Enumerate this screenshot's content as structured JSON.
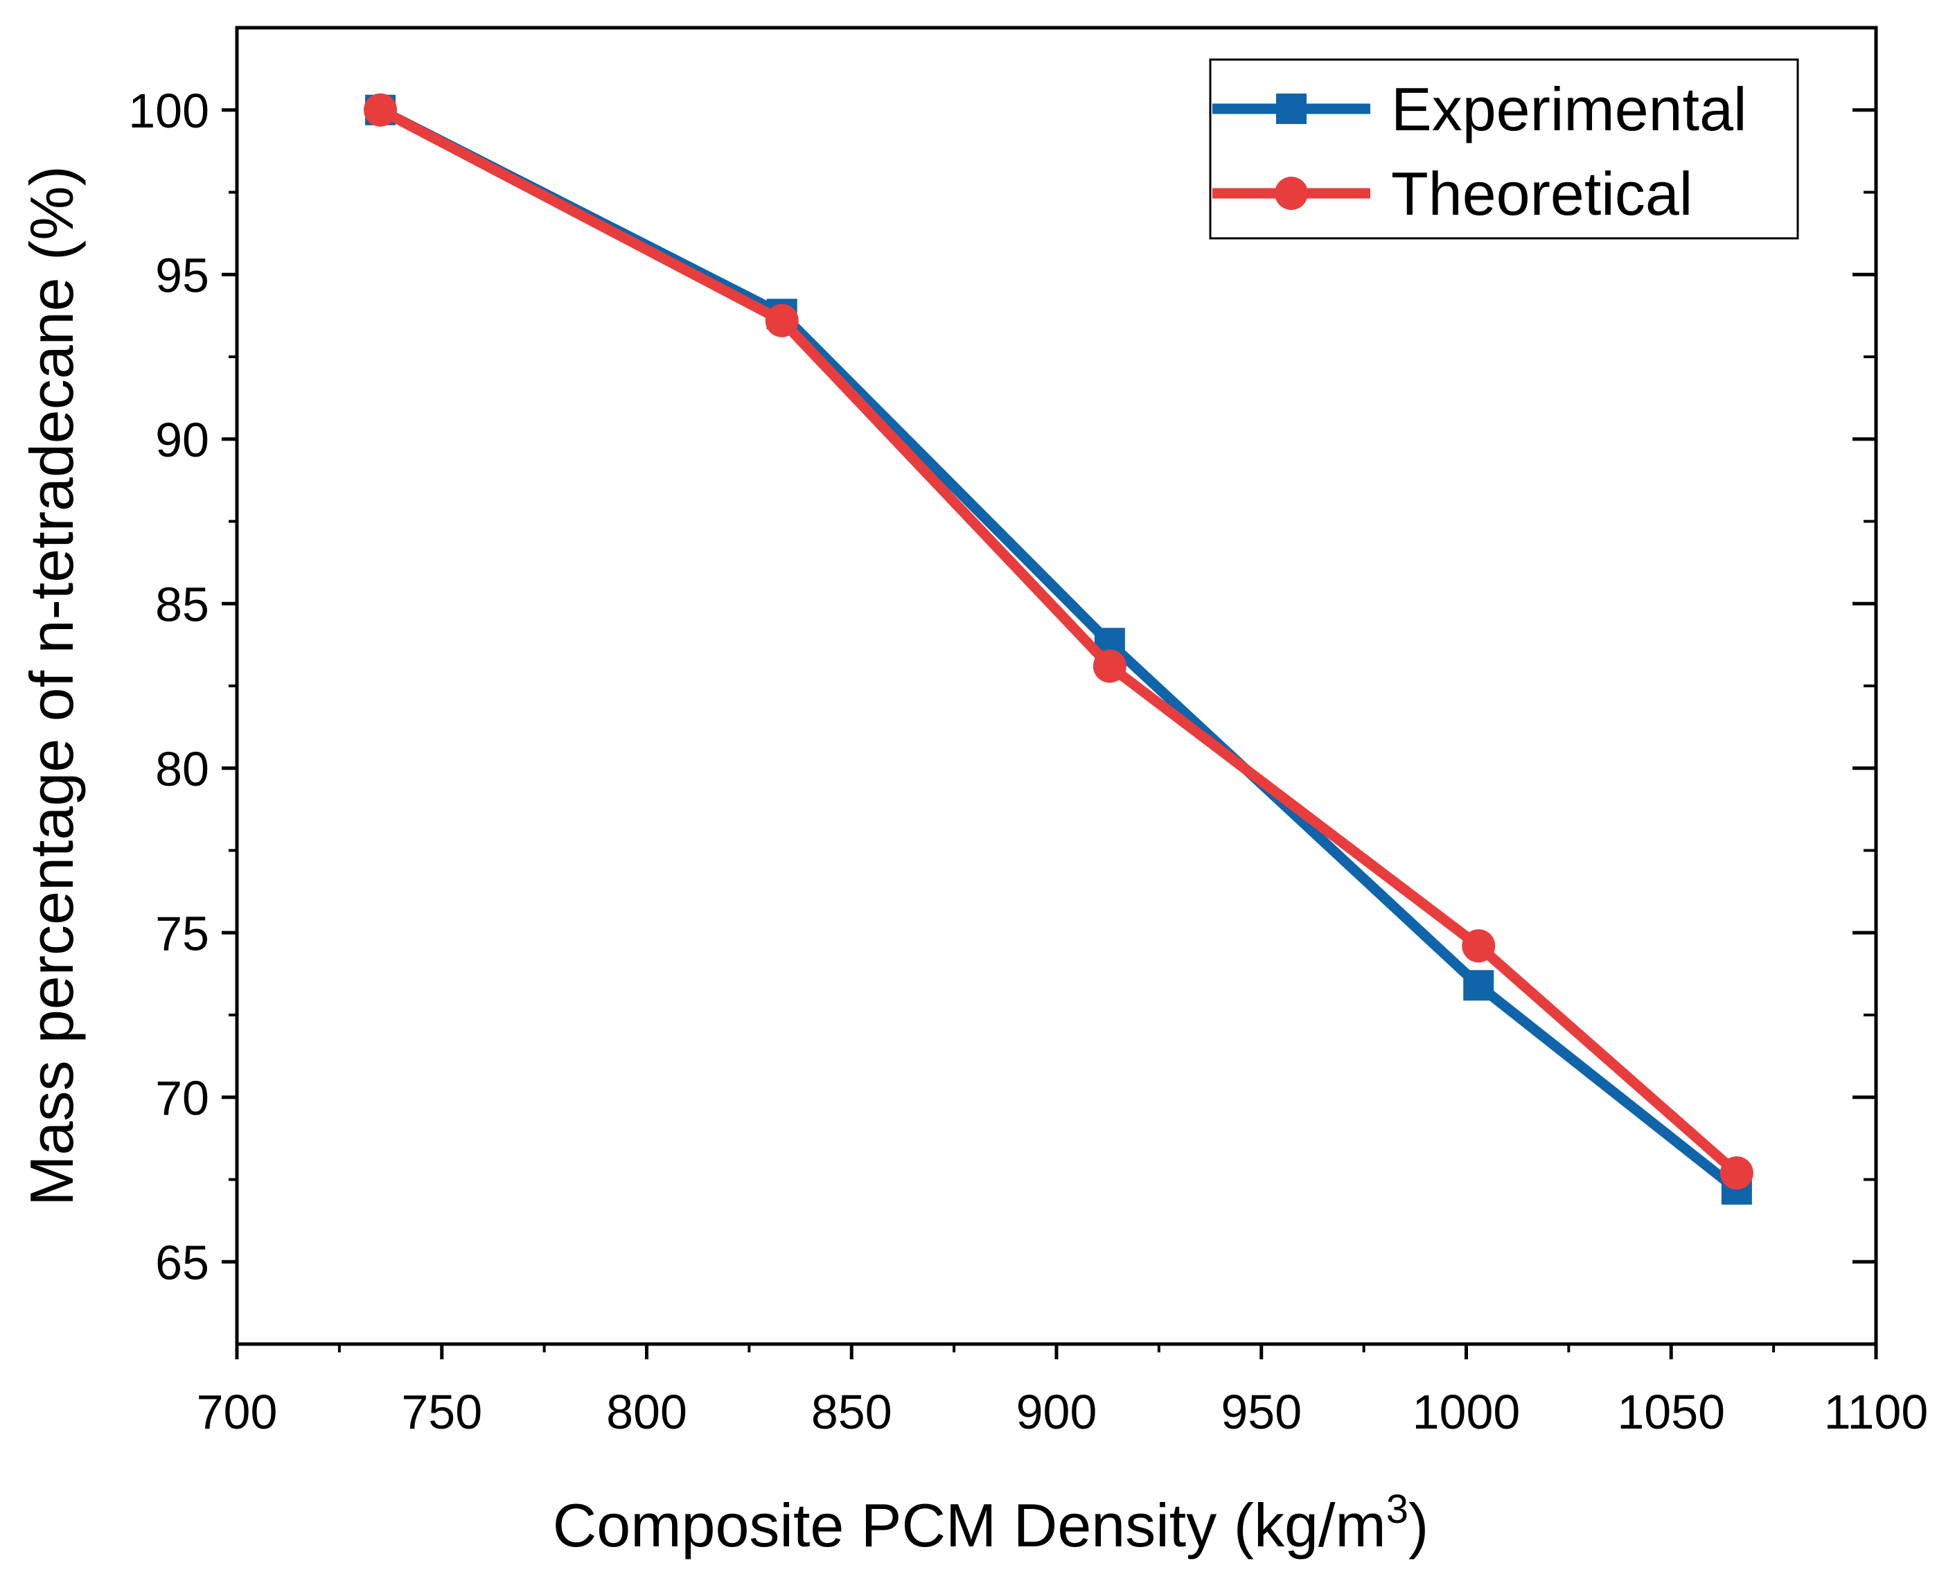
{
  "chart_data": {
    "type": "line",
    "title": "",
    "xlabel": "Composite PCM Density (kg/m",
    "xlabel_superscript": "3",
    "xlabel_suffix": ")",
    "ylabel": "Mass percentage of n-tetradecane (%)",
    "xlim": [
      700,
      1100
    ],
    "ylim": [
      62.5,
      102.5
    ],
    "xticks": [
      700,
      750,
      800,
      850,
      900,
      950,
      1000,
      1050,
      1100
    ],
    "yticks": [
      65,
      70,
      75,
      80,
      85,
      90,
      95,
      100
    ],
    "x_minor_step": 25,
    "y_minor_step": 2.5,
    "grid": false,
    "legend_position": "top-right",
    "series": [
      {
        "name": "Experimental",
        "marker": "square",
        "color": "#0F64AA",
        "x": [
          735,
          833,
          913,
          1003,
          1066
        ],
        "y": [
          100,
          93.8,
          83.8,
          73.4,
          67.2
        ]
      },
      {
        "name": "Theoretical",
        "marker": "circle",
        "color": "#E83D3D",
        "x": [
          735,
          833,
          913,
          1003,
          1066
        ],
        "y": [
          100,
          93.6,
          83.1,
          74.6,
          67.7
        ]
      }
    ]
  }
}
